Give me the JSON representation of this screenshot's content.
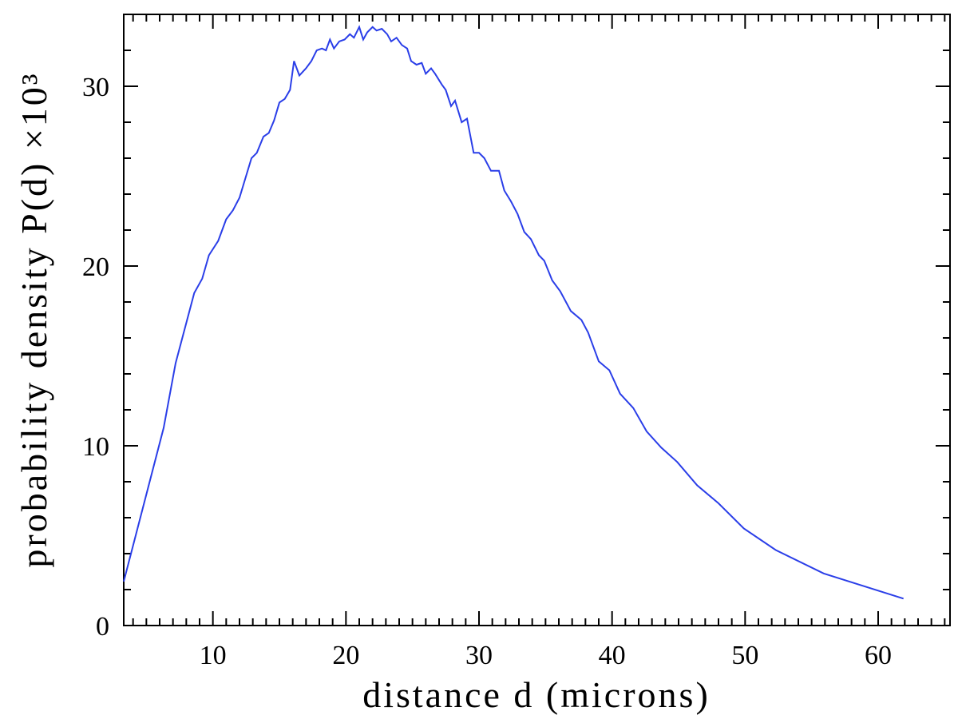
{
  "chart_data": {
    "type": "line",
    "xlabel": "distance d (microns)",
    "ylabel": "probability density P(d) ×10³",
    "color": "#2a3ee8",
    "xlim": [
      3.3,
      65.4
    ],
    "ylim": [
      0,
      34
    ],
    "xticks": [
      10,
      20,
      30,
      40,
      50,
      60
    ],
    "yticks": [
      0,
      10,
      20,
      30
    ],
    "minor_xticks": [
      4,
      5,
      6,
      7,
      8,
      9,
      11,
      12,
      13,
      14,
      15,
      16,
      17,
      18,
      19,
      21,
      22,
      23,
      24,
      25,
      26,
      27,
      28,
      29,
      31,
      32,
      33,
      34,
      35,
      36,
      37,
      38,
      39,
      41,
      42,
      43,
      44,
      45,
      46,
      47,
      48,
      49,
      51,
      52,
      53,
      54,
      55,
      56,
      57,
      58,
      59,
      61,
      62,
      63,
      64,
      65
    ],
    "minor_yticks": [
      2,
      4,
      6,
      8,
      12,
      14,
      16,
      18,
      22,
      24,
      26,
      28,
      32,
      34
    ],
    "x": [
      3.3,
      6.3,
      7.2,
      8.6,
      9.2,
      9.7,
      10.4,
      11.0,
      11.5,
      12.0,
      12.9,
      13.3,
      13.8,
      14.2,
      14.6,
      15.0,
      15.4,
      15.8,
      16.1,
      16.5,
      17.0,
      17.4,
      17.8,
      18.2,
      18.5,
      18.8,
      19.1,
      19.5,
      19.9,
      20.3,
      20.6,
      21.0,
      21.3,
      21.6,
      22.0,
      22.3,
      22.7,
      23.1,
      23.4,
      23.8,
      24.2,
      24.6,
      24.9,
      25.3,
      25.7,
      26.0,
      26.4,
      26.7,
      27.2,
      27.5,
      27.9,
      28.2,
      28.7,
      29.1,
      29.6,
      30.0,
      30.4,
      30.9,
      31.5,
      31.9,
      32.4,
      32.9,
      33.4,
      33.9,
      34.5,
      34.9,
      35.5,
      36.1,
      36.9,
      37.7,
      38.2,
      39.0,
      39.8,
      40.6,
      41.6,
      42.6,
      43.7,
      44.9,
      46.4,
      48.0,
      49.9,
      52.3,
      55.9,
      61.9
    ],
    "values": [
      2.45,
      11.0,
      14.6,
      18.5,
      19.3,
      20.6,
      21.4,
      22.6,
      23.1,
      23.8,
      26.0,
      26.3,
      27.2,
      27.4,
      28.1,
      29.1,
      29.3,
      29.8,
      31.4,
      30.6,
      31.0,
      31.4,
      32.0,
      32.1,
      32.0,
      32.6,
      32.1,
      32.5,
      32.6,
      32.9,
      32.7,
      33.3,
      32.6,
      33.0,
      33.3,
      33.1,
      33.2,
      32.9,
      32.5,
      32.7,
      32.3,
      32.1,
      31.4,
      31.2,
      31.3,
      30.7,
      31.0,
      30.7,
      30.1,
      29.8,
      28.9,
      29.2,
      28.0,
      28.2,
      26.3,
      26.3,
      26.0,
      25.3,
      25.3,
      24.2,
      23.6,
      22.9,
      21.9,
      21.5,
      20.6,
      20.3,
      19.2,
      18.6,
      17.5,
      17.0,
      16.3,
      14.7,
      14.2,
      12.9,
      12.1,
      10.8,
      9.9,
      9.1,
      7.8,
      6.8,
      5.4,
      4.2,
      2.9,
      1.5
    ]
  }
}
